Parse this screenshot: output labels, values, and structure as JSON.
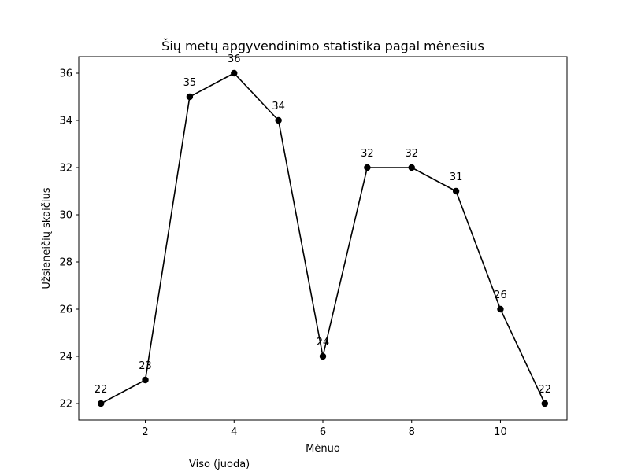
{
  "chart_data": {
    "type": "line",
    "title": "Šių metų apgyvendinimo statistika pagal mėnesius",
    "xlabel": "Mėnuo",
    "ylabel": "Užsieneičių skaičius",
    "x": [
      1,
      2,
      3,
      4,
      5,
      6,
      7,
      8,
      9,
      10,
      11
    ],
    "series": [
      {
        "values": [
          22,
          23,
          35,
          36,
          34,
          24,
          32,
          32,
          31,
          26,
          22
        ],
        "color": "#000000"
      }
    ],
    "data_labels": [
      "22",
      "23",
      "35",
      "36",
      "34",
      "24",
      "32",
      "32",
      "31",
      "26",
      "22"
    ],
    "xlim": [
      0.5,
      11.5
    ],
    "ylim": [
      21.3,
      36.7
    ],
    "x_ticks": [
      2,
      4,
      6,
      8,
      10
    ],
    "x_tick_labels": [
      "2",
      "4",
      "6",
      "8",
      "10"
    ],
    "y_ticks": [
      22,
      24,
      26,
      28,
      30,
      32,
      34,
      36
    ],
    "y_tick_labels": [
      "22",
      "24",
      "26",
      "28",
      "30",
      "32",
      "34",
      "36"
    ],
    "grid": false,
    "footnote": "Viso (juoda)"
  }
}
